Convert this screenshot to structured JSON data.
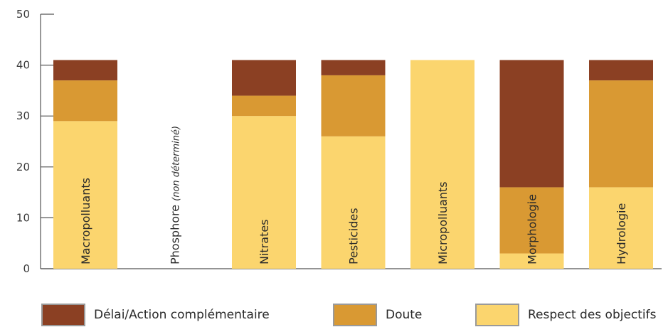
{
  "chart_data": {
    "type": "bar",
    "stacked": true,
    "categories": [
      "Macropolluants",
      "Phosphore (non déterminé)",
      "Nitrates",
      "Pesticides",
      "Micropolluants",
      "Morphologie",
      "Hydrologie"
    ],
    "category_labels": [
      {
        "text": "Macropolluants",
        "note": ""
      },
      {
        "text": "Phosphore ",
        "note": "(non déterminé)"
      },
      {
        "text": "Nitrates",
        "note": ""
      },
      {
        "text": "Pesticides",
        "note": ""
      },
      {
        "text": "Micropolluants",
        "note": ""
      },
      {
        "text": "Morphologie",
        "note": ""
      },
      {
        "text": "Hydrologie",
        "note": ""
      }
    ],
    "series": [
      {
        "name": "Respect des objectifs",
        "color": "#FBD56E",
        "values": [
          29,
          0,
          30,
          26,
          41,
          3,
          16
        ]
      },
      {
        "name": "Doute",
        "color": "#D99933",
        "values": [
          8,
          0,
          4,
          12,
          0,
          13,
          21
        ]
      },
      {
        "name": "Délai/Action complémentaire",
        "color": "#8B4023",
        "values": [
          4,
          0,
          7,
          3,
          0,
          25,
          4
        ]
      }
    ],
    "yticks": [
      0,
      10,
      20,
      30,
      40,
      50
    ],
    "ylim": [
      0,
      50
    ],
    "title": "",
    "xlabel": "",
    "ylabel": "",
    "grid": false,
    "legend_position": "bottom"
  },
  "legend": [
    {
      "label": "Délai/Action complémentaire",
      "color": "#8B4023"
    },
    {
      "label": "Doute",
      "color": "#D99933"
    },
    {
      "label": "Respect des objectifs",
      "color": "#FBD56E"
    }
  ]
}
